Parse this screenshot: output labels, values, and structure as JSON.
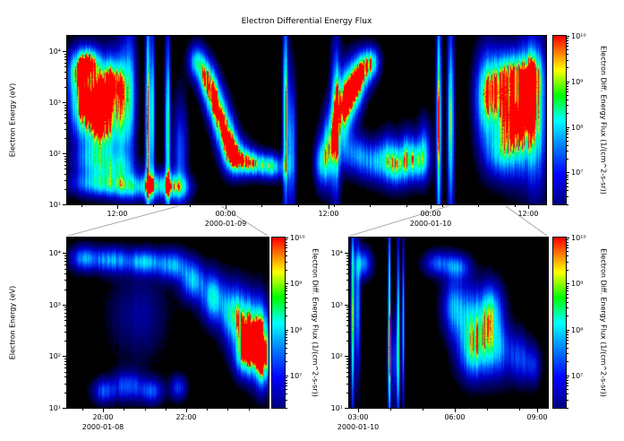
{
  "title": "Electron Differential Energy Flux",
  "ylabel": "Electron Energy (eV)",
  "colorbar_label": "Electron Diff. Energy Flux (1/(cm^2-s-sr))",
  "colors": {
    "figure_bg": "#ffffff",
    "plot_bg": "#000000",
    "axis": "#000000",
    "connector_line": "#999999",
    "data_colormap": [
      [
        0.0,
        "#000000"
      ],
      [
        0.1,
        "#00004a"
      ],
      [
        0.3,
        "#0000cc"
      ],
      [
        0.5,
        "#0055ff"
      ],
      [
        0.65,
        "#00ccff"
      ],
      [
        0.78,
        "#00ffee"
      ],
      [
        0.88,
        "#00ff55"
      ],
      [
        0.94,
        "#ccff00"
      ],
      [
        0.98,
        "#ffaa00"
      ],
      [
        1.0,
        "#ff0000"
      ]
    ],
    "colorbar_colormap": [
      [
        0.0,
        "#000080"
      ],
      [
        0.18,
        "#0000ff"
      ],
      [
        0.35,
        "#0080ff"
      ],
      [
        0.5,
        "#00ffff"
      ],
      [
        0.65,
        "#00ff00"
      ],
      [
        0.8,
        "#ffff00"
      ],
      [
        0.9,
        "#ff8000"
      ],
      [
        1.0,
        "#ff0000"
      ]
    ]
  },
  "chart_data": [
    {
      "id": "overview",
      "type": "heatmap",
      "y_axis": {
        "label": "Electron Energy (eV)",
        "scale": "log",
        "range_log10_ev": [
          1,
          4.3
        ]
      },
      "x_ticks": [
        {
          "f": 0.105,
          "label": "12:00"
        },
        {
          "f": 0.331,
          "label": "00:00",
          "date": "2000-01-09"
        },
        {
          "f": 0.546,
          "label": "12:00"
        },
        {
          "f": 0.759,
          "label": "00:00",
          "date": "2000-01-10"
        },
        {
          "f": 0.963,
          "label": "12:00"
        }
      ],
      "y_ticks": [
        {
          "f": 0.091,
          "label": "10⁴"
        },
        {
          "f": 0.394,
          "label": "10³"
        },
        {
          "f": 0.697,
          "label": "10²"
        },
        {
          "f": 1.0,
          "label": "10¹"
        }
      ],
      "colorbar_ticks": [
        {
          "f": 0.0,
          "label": "10¹⁰"
        },
        {
          "f": 0.27,
          "label": "10⁹"
        },
        {
          "f": 0.54,
          "label": "10⁸"
        },
        {
          "f": 0.81,
          "label": "10⁷"
        }
      ],
      "features": [
        [
          0.02,
          0.8,
          0.015,
          0.09,
          0.7
        ],
        [
          0.045,
          0.85,
          0.014,
          0.06,
          0.75
        ],
        [
          0.03,
          0.58,
          0.02,
          0.13,
          0.7
        ],
        [
          0.06,
          0.62,
          0.025,
          0.17,
          0.75
        ],
        [
          0.09,
          0.74,
          0.018,
          0.1,
          0.7
        ],
        [
          0.075,
          0.46,
          0.02,
          0.12,
          0.65
        ],
        [
          0.11,
          0.56,
          0.014,
          0.24,
          0.6
        ],
        [
          0.13,
          0.66,
          0.01,
          0.28,
          0.55
        ],
        [
          0.05,
          0.26,
          0.028,
          0.08,
          0.5
        ],
        [
          0.1,
          0.22,
          0.028,
          0.06,
          0.45
        ],
        [
          0.06,
          0.12,
          0.04,
          0.05,
          0.5
        ],
        [
          0.13,
          0.1,
          0.04,
          0.05,
          0.5
        ],
        [
          0.19,
          0.12,
          0.03,
          0.06,
          0.55
        ],
        [
          0.23,
          0.1,
          0.02,
          0.05,
          0.5
        ],
        [
          0.168,
          0.5,
          0.004,
          0.45,
          0.95
        ],
        [
          0.178,
          0.55,
          0.003,
          0.35,
          0.7
        ],
        [
          0.209,
          0.45,
          0.004,
          0.4,
          0.85
        ],
        [
          0.235,
          0.3,
          0.01,
          0.22,
          0.5
        ],
        [
          0.27,
          0.85,
          0.012,
          0.07,
          0.7
        ],
        [
          0.29,
          0.75,
          0.012,
          0.08,
          0.85
        ],
        [
          0.305,
          0.63,
          0.012,
          0.09,
          0.9
        ],
        [
          0.32,
          0.5,
          0.012,
          0.1,
          0.85
        ],
        [
          0.335,
          0.38,
          0.012,
          0.1,
          0.8
        ],
        [
          0.35,
          0.3,
          0.015,
          0.08,
          0.7
        ],
        [
          0.37,
          0.26,
          0.02,
          0.06,
          0.6
        ],
        [
          0.4,
          0.24,
          0.025,
          0.05,
          0.55
        ],
        [
          0.43,
          0.22,
          0.02,
          0.05,
          0.5
        ],
        [
          0.455,
          0.55,
          0.004,
          0.4,
          0.9
        ],
        [
          0.468,
          0.35,
          0.006,
          0.28,
          0.6
        ],
        [
          0.53,
          0.25,
          0.01,
          0.1,
          0.6
        ],
        [
          0.545,
          0.35,
          0.01,
          0.15,
          0.7
        ],
        [
          0.56,
          0.5,
          0.007,
          0.3,
          0.85
        ],
        [
          0.575,
          0.55,
          0.012,
          0.15,
          0.7
        ],
        [
          0.59,
          0.65,
          0.012,
          0.12,
          0.75
        ],
        [
          0.605,
          0.72,
          0.012,
          0.1,
          0.7
        ],
        [
          0.62,
          0.8,
          0.015,
          0.08,
          0.65
        ],
        [
          0.635,
          0.85,
          0.012,
          0.06,
          0.6
        ],
        [
          0.6,
          0.3,
          0.02,
          0.08,
          0.5
        ],
        [
          0.64,
          0.25,
          0.02,
          0.08,
          0.5
        ],
        [
          0.67,
          0.28,
          0.015,
          0.1,
          0.6
        ],
        [
          0.69,
          0.22,
          0.015,
          0.08,
          0.55
        ],
        [
          0.71,
          0.3,
          0.012,
          0.1,
          0.6
        ],
        [
          0.73,
          0.25,
          0.015,
          0.08,
          0.55
        ],
        [
          0.745,
          0.33,
          0.01,
          0.12,
          0.5
        ],
        [
          0.775,
          0.5,
          0.004,
          0.45,
          0.95
        ],
        [
          0.8,
          0.5,
          0.005,
          0.4,
          0.85
        ],
        [
          0.87,
          0.6,
          0.015,
          0.2,
          0.55
        ],
        [
          0.89,
          0.7,
          0.02,
          0.15,
          0.6
        ],
        [
          0.915,
          0.55,
          0.02,
          0.2,
          0.6
        ],
        [
          0.94,
          0.45,
          0.02,
          0.18,
          0.6
        ],
        [
          0.96,
          0.6,
          0.02,
          0.25,
          0.6
        ],
        [
          0.98,
          0.5,
          0.015,
          0.3,
          0.55
        ],
        [
          0.93,
          0.8,
          0.02,
          0.08,
          0.5
        ],
        [
          0.97,
          0.78,
          0.015,
          0.1,
          0.5
        ],
        [
          0.9,
          0.3,
          0.02,
          0.1,
          0.45
        ]
      ]
    },
    {
      "id": "zoom-2000-01-08",
      "type": "heatmap",
      "y_axis": {
        "label": "Electron Energy (eV)",
        "scale": "log",
        "range_log10_ev": [
          1,
          4.3
        ]
      },
      "x_ticks": [
        {
          "f": 0.178,
          "label": "20:00",
          "date": "2000-01-08"
        },
        {
          "f": 0.591,
          "label": "22:00"
        }
      ],
      "y_ticks": [
        {
          "f": 0.091,
          "label": "10⁴"
        },
        {
          "f": 0.394,
          "label": "10³"
        },
        {
          "f": 0.697,
          "label": "10²"
        },
        {
          "f": 1.0,
          "label": "10¹"
        }
      ],
      "colorbar_ticks": [
        {
          "f": 0.0,
          "label": "10¹⁰"
        },
        {
          "f": 0.27,
          "label": "10⁹"
        },
        {
          "f": 0.54,
          "label": "10⁸"
        },
        {
          "f": 0.81,
          "label": "10⁷"
        }
      ],
      "features": [
        [
          0.08,
          0.88,
          0.05,
          0.05,
          0.55
        ],
        [
          0.22,
          0.87,
          0.06,
          0.05,
          0.6
        ],
        [
          0.38,
          0.86,
          0.06,
          0.05,
          0.6
        ],
        [
          0.52,
          0.84,
          0.05,
          0.06,
          0.6
        ],
        [
          0.62,
          0.75,
          0.04,
          0.08,
          0.65
        ],
        [
          0.72,
          0.65,
          0.04,
          0.1,
          0.7
        ],
        [
          0.82,
          0.55,
          0.04,
          0.12,
          0.8
        ],
        [
          0.9,
          0.45,
          0.04,
          0.14,
          0.88
        ],
        [
          0.96,
          0.4,
          0.035,
          0.15,
          0.92
        ],
        [
          0.88,
          0.3,
          0.04,
          0.08,
          0.6
        ],
        [
          0.97,
          0.25,
          0.03,
          0.1,
          0.55
        ],
        [
          0.18,
          0.1,
          0.04,
          0.05,
          0.45
        ],
        [
          0.3,
          0.13,
          0.05,
          0.06,
          0.5
        ],
        [
          0.42,
          0.1,
          0.04,
          0.05,
          0.45
        ],
        [
          0.55,
          0.12,
          0.03,
          0.05,
          0.4
        ],
        [
          0.35,
          0.55,
          0.1,
          0.18,
          0.22
        ]
      ]
    },
    {
      "id": "zoom-2000-01-10",
      "type": "heatmap",
      "y_axis": {
        "label": "Electron Energy (eV)",
        "scale": "log",
        "range_log10_ev": [
          1,
          4.3
        ]
      },
      "x_ticks": [
        {
          "f": 0.045,
          "label": "03:00",
          "date": "2000-01-10"
        },
        {
          "f": 0.532,
          "label": "06:00"
        },
        {
          "f": 0.946,
          "label": "09:00"
        }
      ],
      "y_ticks": [
        {
          "f": 0.091,
          "label": "10⁴"
        },
        {
          "f": 0.394,
          "label": "10³"
        },
        {
          "f": 0.697,
          "label": "10²"
        },
        {
          "f": 1.0,
          "label": "10¹"
        }
      ],
      "colorbar_ticks": [
        {
          "f": 0.0,
          "label": "10¹⁰"
        },
        {
          "f": 0.27,
          "label": "10⁹"
        },
        {
          "f": 0.54,
          "label": "10⁸"
        },
        {
          "f": 0.81,
          "label": "10⁷"
        }
      ],
      "features": [
        [
          0.015,
          0.55,
          0.006,
          0.4,
          0.9
        ],
        [
          0.04,
          0.6,
          0.01,
          0.28,
          0.6
        ],
        [
          0.07,
          0.85,
          0.03,
          0.06,
          0.55
        ],
        [
          0.2,
          0.5,
          0.005,
          0.45,
          0.9
        ],
        [
          0.245,
          0.45,
          0.005,
          0.4,
          0.85
        ],
        [
          0.27,
          0.5,
          0.004,
          0.35,
          0.8
        ],
        [
          0.22,
          0.28,
          0.02,
          0.18,
          0.4
        ],
        [
          0.45,
          0.85,
          0.05,
          0.05,
          0.5
        ],
        [
          0.55,
          0.83,
          0.04,
          0.05,
          0.45
        ],
        [
          0.52,
          0.6,
          0.04,
          0.12,
          0.5
        ],
        [
          0.6,
          0.5,
          0.05,
          0.15,
          0.55
        ],
        [
          0.68,
          0.45,
          0.05,
          0.15,
          0.55
        ],
        [
          0.62,
          0.3,
          0.05,
          0.1,
          0.45
        ],
        [
          0.75,
          0.35,
          0.04,
          0.12,
          0.5
        ],
        [
          0.72,
          0.6,
          0.04,
          0.1,
          0.45
        ],
        [
          0.85,
          0.3,
          0.04,
          0.1,
          0.4
        ],
        [
          0.92,
          0.25,
          0.03,
          0.08,
          0.35
        ]
      ]
    }
  ]
}
